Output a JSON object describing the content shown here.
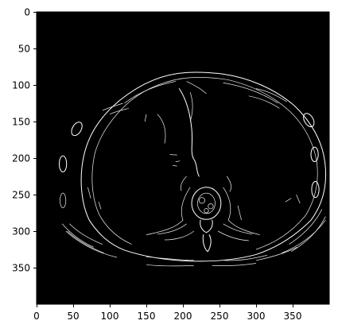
{
  "figure": {
    "background_color": "#ffffff",
    "image_background": "#000000",
    "edge_color": "#ffffff",
    "axis_range_x": [
      0,
      400
    ],
    "axis_range_y": [
      400,
      0
    ]
  },
  "axes": {
    "x_ticks": [
      "0",
      "50",
      "100",
      "150",
      "200",
      "250",
      "300",
      "350"
    ],
    "y_ticks": [
      "0",
      "50",
      "100",
      "150",
      "200",
      "250",
      "300",
      "350"
    ]
  }
}
